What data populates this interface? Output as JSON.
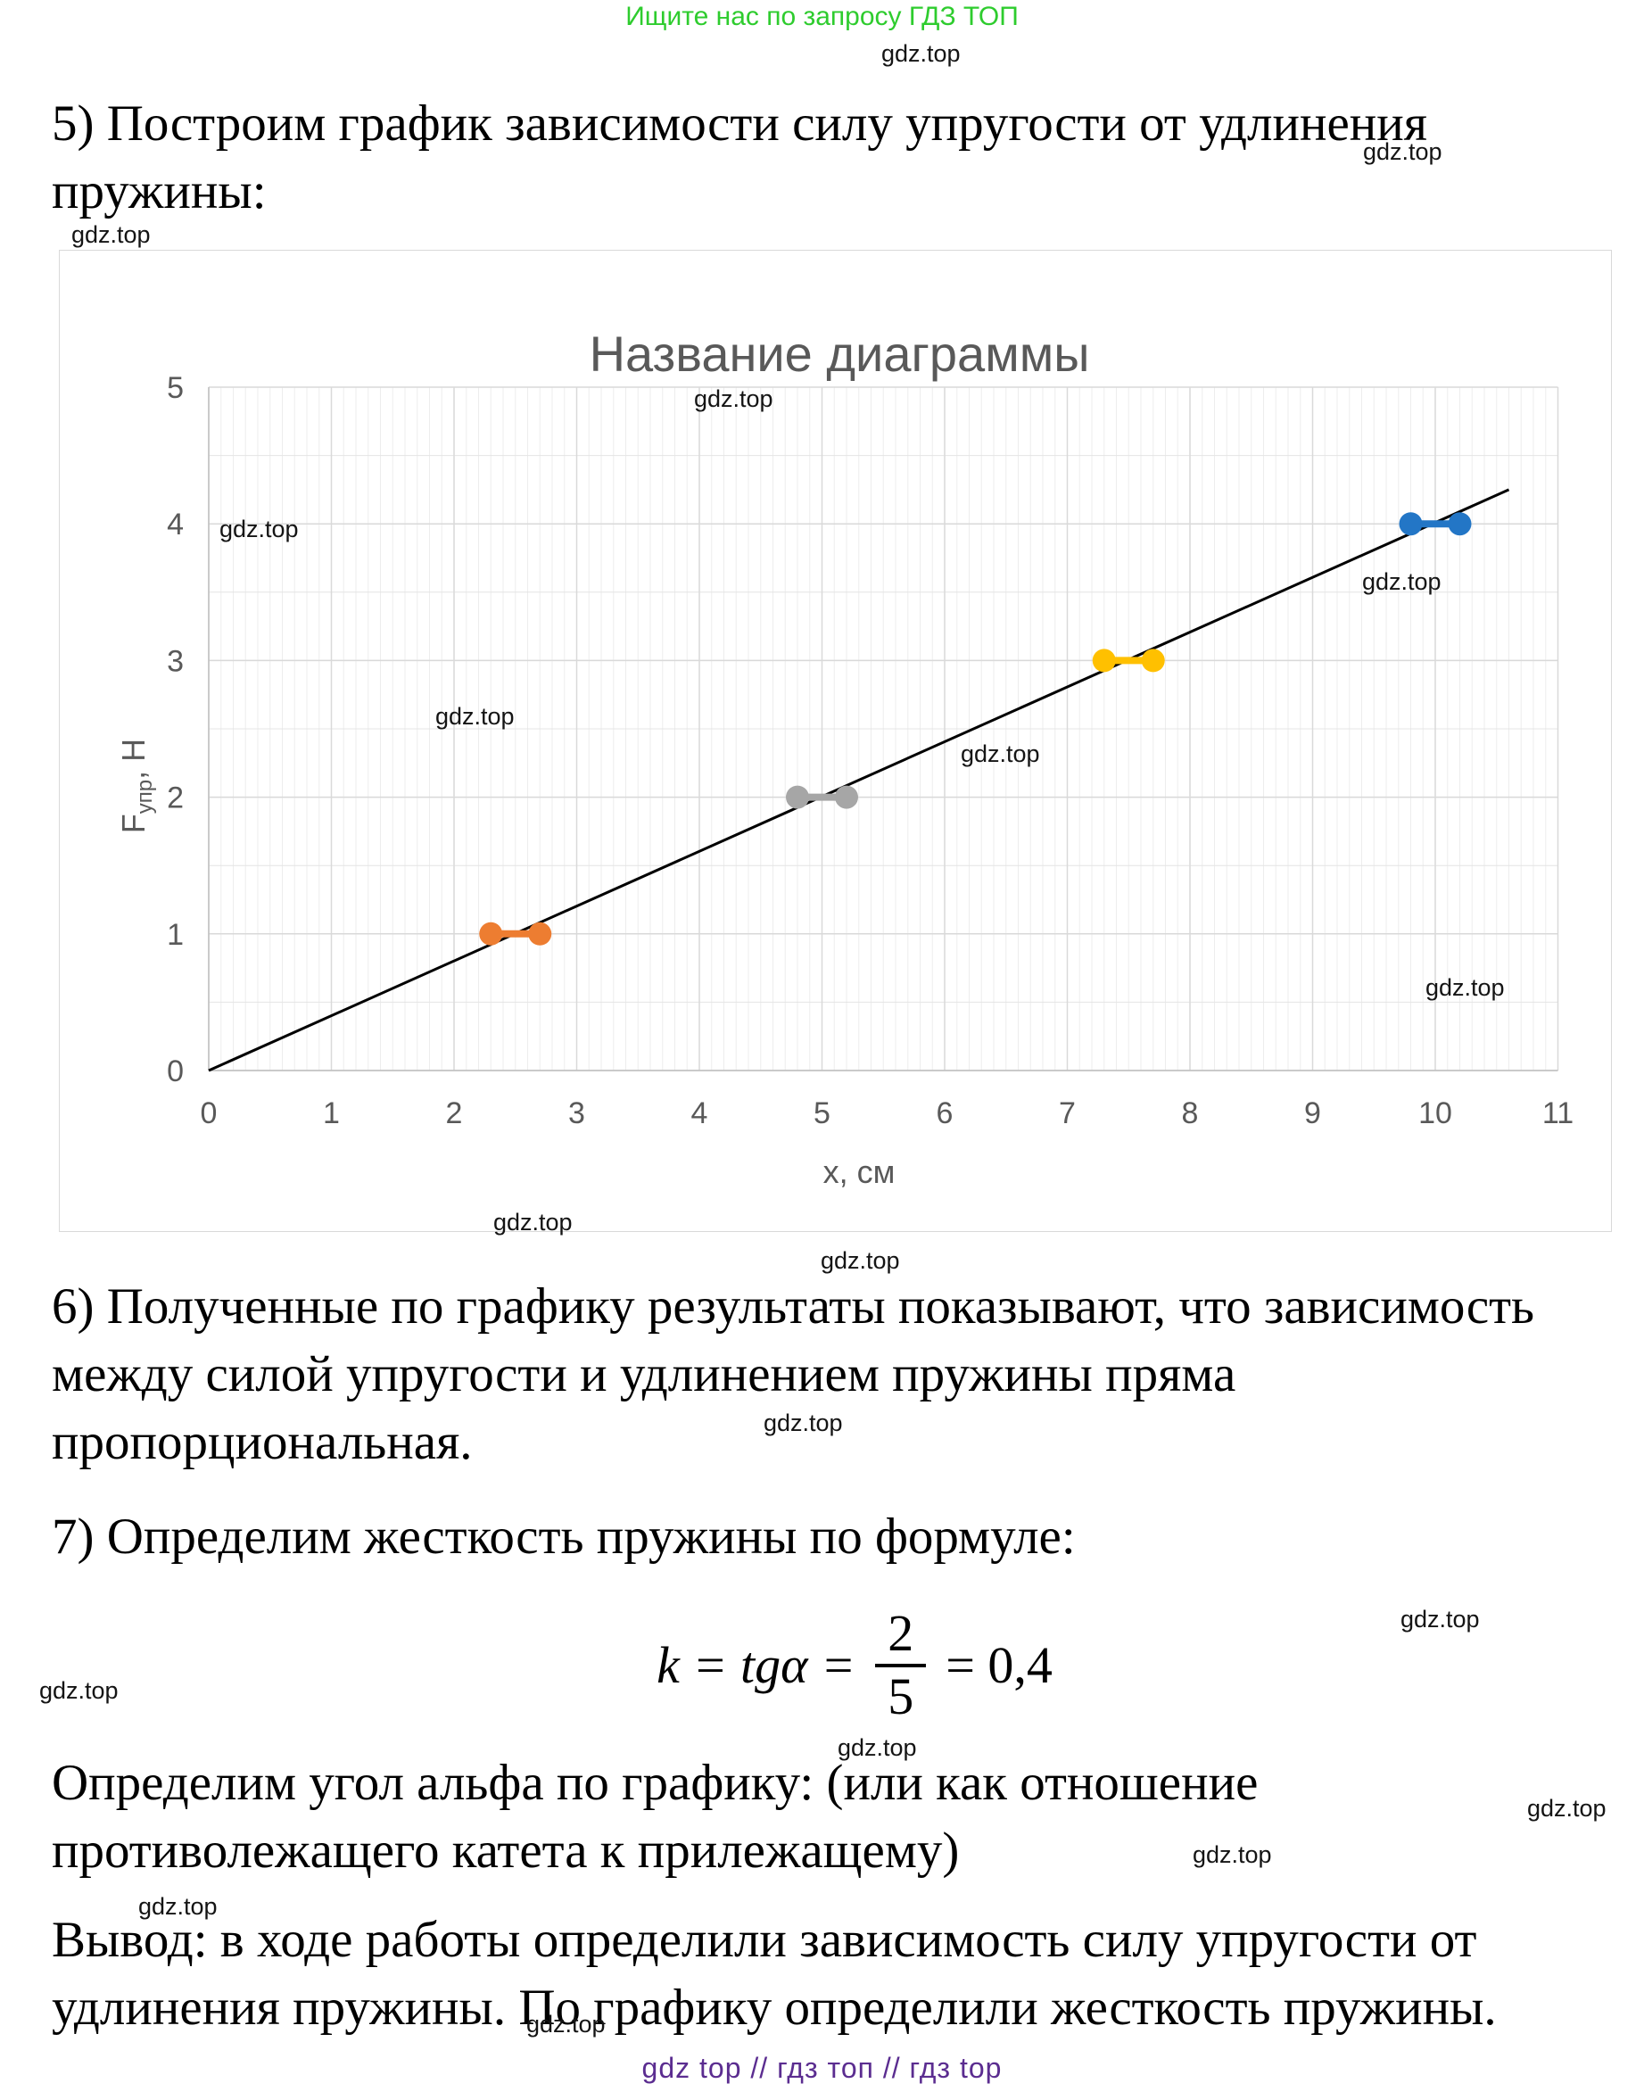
{
  "promo": "Ищите нас по запросу ГДЗ ТОП",
  "watermark_text": "gdz.top",
  "heading5": {
    "line1": "5) Построим график зависимости силу упругости от удлинения",
    "line2": "пружины:"
  },
  "section6": {
    "line1": "6) Полученные по графику результаты показывают, что зависимость",
    "line2": "между силой упругости и удлинением пружины пряма",
    "line3": "пропорциональная."
  },
  "section7": "7) Определим жесткость пружины по формуле:",
  "formula": {
    "lhs": "k = tgα =",
    "num": "2",
    "den": "5",
    "rhs": "= 0,4"
  },
  "paragraph": {
    "line1": "Определим угол альфа по графику: (или как отношение",
    "line2": "противолежащего катета к прилежащему)"
  },
  "conclusion": {
    "line1": "Вывод: в ходе работы определили зависимость силу упругости от",
    "line2": "удлинения пружины. По графику определили жесткость пружины."
  },
  "footer": "gdz top  //  гдз топ  //  гдз top",
  "colors": {
    "promo_green": "#2ecc2e",
    "footer_purple": "#5b2d90",
    "chart_text_gray": "#595959",
    "grid_major": "#d9d9d9",
    "grid_minor": "#ededed",
    "axis_line": "#bfbfbf"
  },
  "chart_data": {
    "type": "scatter",
    "title": "Название диаграммы",
    "xlabel": "х, см",
    "ylabel": "Fупр, Н",
    "ylabel_parts": {
      "base": "F",
      "sub": "упр",
      "rest": ", Н"
    },
    "xlim": [
      0,
      11
    ],
    "ylim": [
      0,
      5
    ],
    "x_ticks": [
      0,
      1,
      2,
      3,
      4,
      5,
      6,
      7,
      8,
      9,
      10,
      11
    ],
    "y_ticks": [
      0,
      1,
      2,
      3,
      4,
      5
    ],
    "x_minor_step": 0.1,
    "y_minor_step": 0.5,
    "grid": true,
    "legend": "none",
    "series": [
      {
        "name": "pair-1-orange",
        "color": "#ED7D31",
        "points": [
          [
            2.3,
            1
          ],
          [
            2.7,
            1
          ]
        ]
      },
      {
        "name": "pair-2-gray",
        "color": "#A6A6A6",
        "points": [
          [
            4.8,
            2
          ],
          [
            5.2,
            2
          ]
        ]
      },
      {
        "name": "pair-3-yellow",
        "color": "#FFC000",
        "points": [
          [
            7.3,
            3
          ],
          [
            7.7,
            3
          ]
        ]
      },
      {
        "name": "pair-4-blue",
        "color": "#2376C6",
        "points": [
          [
            9.8,
            4
          ],
          [
            10.2,
            4
          ]
        ]
      }
    ],
    "trendline": {
      "color": "#000000",
      "from": [
        0,
        0
      ],
      "to": [
        10.6,
        4.25
      ],
      "slope_k": 0.4
    }
  }
}
